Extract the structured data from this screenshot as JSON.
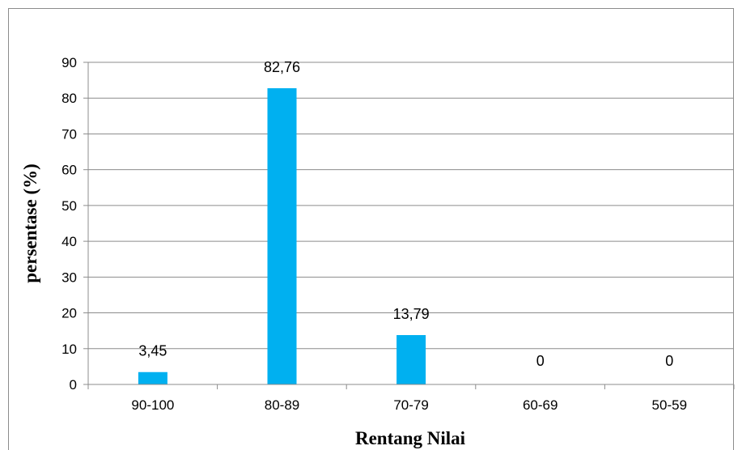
{
  "chart_data": {
    "type": "bar",
    "categories": [
      "90-100",
      "80-89",
      "70-79",
      "60-69",
      "50-59"
    ],
    "values": [
      3.45,
      82.76,
      13.79,
      0,
      0
    ],
    "data_labels": [
      "3,45",
      "82,76",
      "13,79",
      "0",
      "0"
    ],
    "xlabel": "Rentang Nilai",
    "ylabel": "persentase (%)",
    "ylim": [
      0,
      90
    ],
    "yticks": [
      0,
      10,
      20,
      30,
      40,
      50,
      60,
      70,
      80,
      90
    ],
    "grid": true,
    "legend": "none",
    "bar_color": "#00B0F0",
    "grid_color": "#8c8c8c"
  }
}
